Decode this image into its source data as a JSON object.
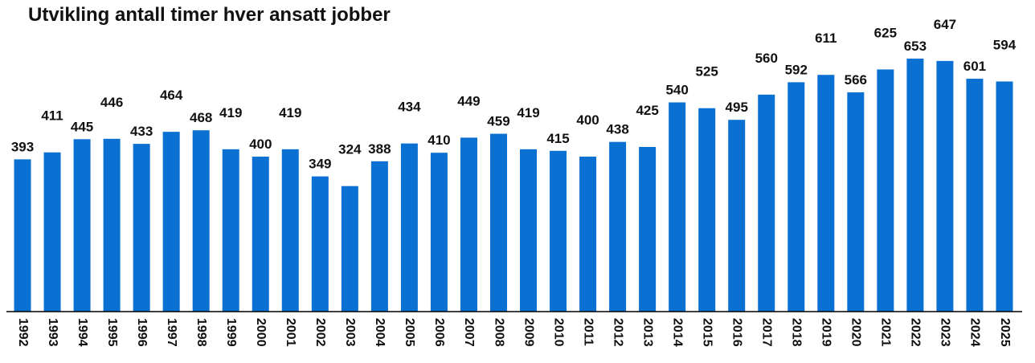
{
  "chart_data": {
    "type": "bar",
    "title": "Utvikling antall timer hver ansatt jobber",
    "categories": [
      "1992",
      "1993",
      "1994",
      "1995",
      "1996",
      "1997",
      "1998",
      "1999",
      "2000",
      "2001",
      "2002",
      "2003",
      "2004",
      "2005",
      "2006",
      "2007",
      "2008",
      "2009",
      "2010",
      "2011",
      "2012",
      "2013",
      "2014",
      "2015",
      "2016",
      "2017",
      "2018",
      "2019",
      "2020",
      "2021",
      "2022",
      "2023",
      "2024",
      "2025"
    ],
    "values": [
      393,
      411,
      445,
      446,
      433,
      464,
      468,
      419,
      400,
      419,
      349,
      324,
      388,
      434,
      410,
      449,
      459,
      419,
      415,
      400,
      438,
      425,
      540,
      525,
      495,
      560,
      592,
      611,
      566,
      625,
      653,
      647,
      601,
      594
    ],
    "color": "#0a70d2",
    "ylim": [
      0,
      740
    ]
  }
}
